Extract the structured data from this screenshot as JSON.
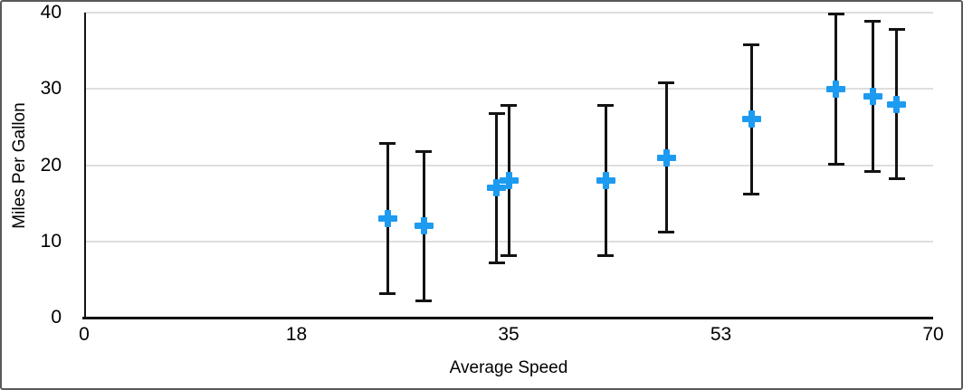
{
  "figure": {
    "background_color": "#ffffff",
    "border_color": "#59595b"
  },
  "chart_data": {
    "type": "scatter",
    "title": "",
    "xlabel": "Average Speed",
    "ylabel": "Miles Per Gallon",
    "xlim": [
      0,
      70
    ],
    "ylim": [
      0,
      40
    ],
    "x_ticks": [
      {
        "label": "0",
        "value": 0
      },
      {
        "label": "18",
        "value": 17.5
      },
      {
        "label": "35",
        "value": 35
      },
      {
        "label": "53",
        "value": 52.5
      },
      {
        "label": "70",
        "value": 70
      }
    ],
    "y_ticks": [
      {
        "label": "0",
        "value": 0
      },
      {
        "label": "10",
        "value": 10
      },
      {
        "label": "20",
        "value": 20
      },
      {
        "label": "30",
        "value": 30
      },
      {
        "label": "40",
        "value": 40
      }
    ],
    "grid": "horizontal",
    "legend": "none",
    "marker_shape": "plus",
    "marker_color": "#1d9bf0",
    "error_bar_color": "#131313",
    "series": [
      {
        "name": "Miles Per Gallon",
        "points": [
          {
            "x": 25,
            "y": 13,
            "error_plus": 10,
            "error_minus": 10
          },
          {
            "x": 28,
            "y": 12,
            "error_plus": 10,
            "error_minus": 10
          },
          {
            "x": 34,
            "y": 17,
            "error_plus": 10,
            "error_minus": 10
          },
          {
            "x": 35,
            "y": 18,
            "error_plus": 10,
            "error_minus": 10
          },
          {
            "x": 43,
            "y": 18,
            "error_plus": 10,
            "error_minus": 10
          },
          {
            "x": 48,
            "y": 21,
            "error_plus": 10,
            "error_minus": 10
          },
          {
            "x": 55,
            "y": 26,
            "error_plus": 10,
            "error_minus": 10
          },
          {
            "x": 62,
            "y": 30,
            "error_plus": 10,
            "error_minus": 10
          },
          {
            "x": 65,
            "y": 29,
            "error_plus": 10,
            "error_minus": 10
          },
          {
            "x": 67,
            "y": 28,
            "error_plus": 10,
            "error_minus": 10
          }
        ]
      }
    ]
  }
}
